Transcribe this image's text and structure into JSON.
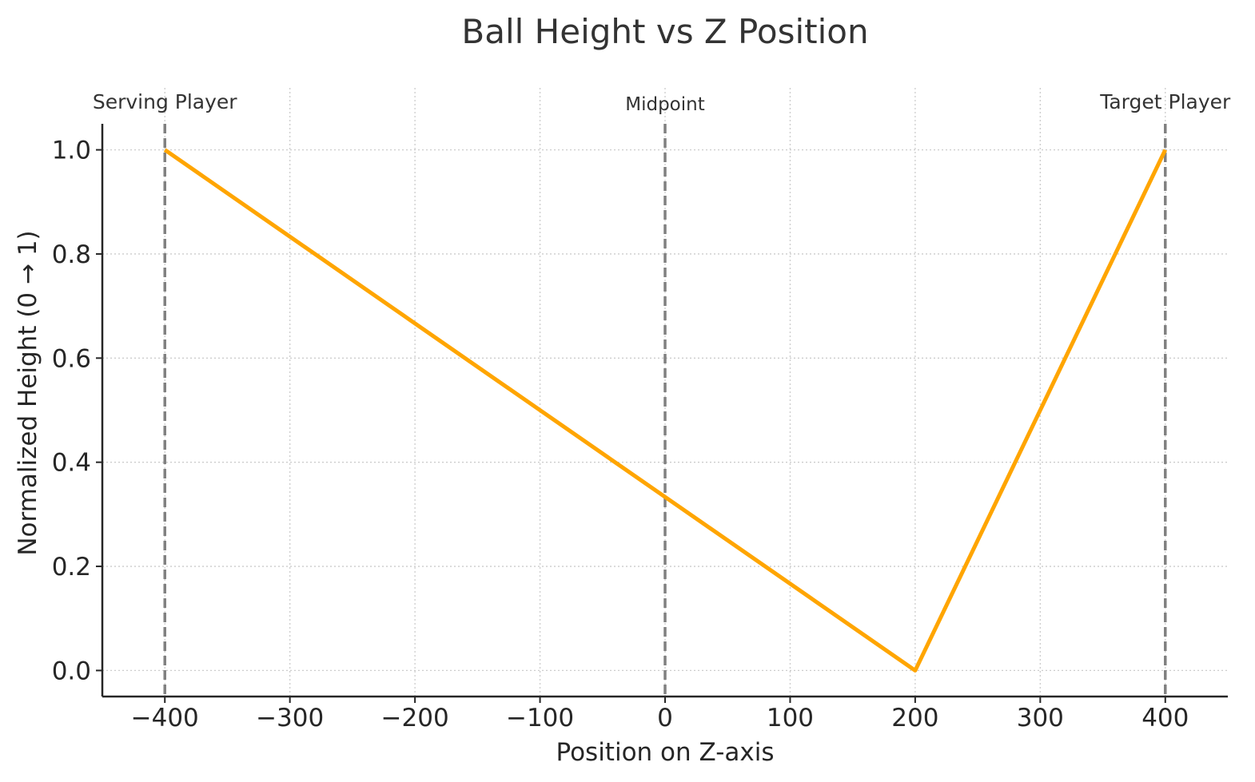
{
  "chart_data": {
    "type": "line",
    "title": "Ball Height vs Z Position",
    "xlabel": "Position on Z-axis",
    "ylabel": "Normalized Height (0 → 1)",
    "xlim": [
      -450,
      450
    ],
    "ylim": [
      -0.05,
      1.05
    ],
    "xticks": [
      -400,
      -300,
      -200,
      -100,
      0,
      100,
      200,
      300,
      400
    ],
    "xtick_labels": [
      "−400",
      "−300",
      "−200",
      "−100",
      "0",
      "100",
      "200",
      "300",
      "400"
    ],
    "yticks": [
      0.0,
      0.2,
      0.4,
      0.6,
      0.8,
      1.0
    ],
    "ytick_labels": [
      "0.0",
      "0.2",
      "0.4",
      "0.6",
      "0.8",
      "1.0"
    ],
    "grid": true,
    "series": [
      {
        "color": "#FFA500",
        "x": [
          -400,
          200,
          400
        ],
        "y": [
          1.0,
          0.0,
          1.0
        ]
      }
    ],
    "markers": [
      {
        "x": -400,
        "label": "Serving Player",
        "color": "#808080"
      },
      {
        "x": 0,
        "label": "Midpoint",
        "color": "#808080"
      },
      {
        "x": 400,
        "label": "Target Player",
        "color": "#808080"
      }
    ]
  }
}
